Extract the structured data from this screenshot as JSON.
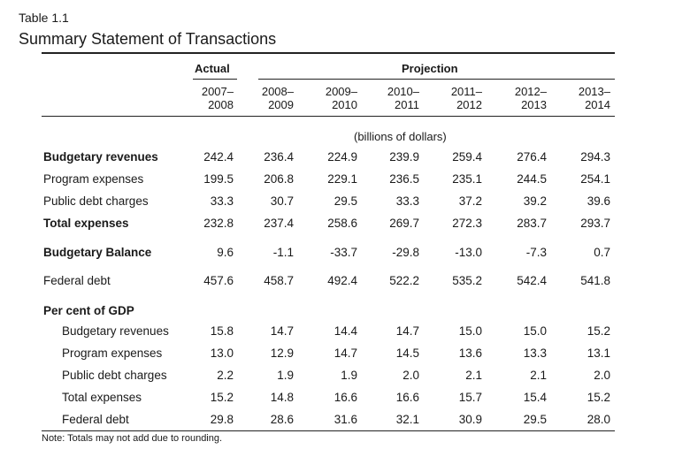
{
  "table": {
    "label": "Table 1.1",
    "title": "Summary Statement of Transactions",
    "group_actual": "Actual",
    "group_projection": "Projection",
    "years": [
      {
        "top": "2007–",
        "bottom": "2008"
      },
      {
        "top": "2008–",
        "bottom": "2009"
      },
      {
        "top": "2009–",
        "bottom": "2010"
      },
      {
        "top": "2010–",
        "bottom": "2011"
      },
      {
        "top": "2011–",
        "bottom": "2012"
      },
      {
        "top": "2012–",
        "bottom": "2013"
      },
      {
        "top": "2013–",
        "bottom": "2014"
      }
    ],
    "units": "(billions of dollars)",
    "rows": [
      {
        "label": "Budgetary revenues",
        "bold": true,
        "indent": false,
        "values": [
          "242.4",
          "236.4",
          "224.9",
          "239.9",
          "259.4",
          "276.4",
          "294.3"
        ]
      },
      {
        "label": "Program expenses",
        "bold": false,
        "indent": false,
        "values": [
          "199.5",
          "206.8",
          "229.1",
          "236.5",
          "235.1",
          "244.5",
          "254.1"
        ]
      },
      {
        "label": "Public debt charges",
        "bold": false,
        "indent": false,
        "values": [
          "33.3",
          "30.7",
          "29.5",
          "33.3",
          "37.2",
          "39.2",
          "39.6"
        ]
      },
      {
        "label": "Total expenses",
        "bold": true,
        "indent": false,
        "values": [
          "232.8",
          "237.4",
          "258.6",
          "269.7",
          "272.3",
          "283.7",
          "293.7"
        ]
      },
      {
        "label": "Budgetary Balance",
        "bold": true,
        "indent": false,
        "values": [
          "9.6",
          "-1.1",
          "-33.7",
          "-29.8",
          "-13.0",
          "-7.3",
          "0.7"
        ]
      },
      {
        "label": "Federal debt",
        "bold": false,
        "indent": false,
        "values": [
          "457.6",
          "458.7",
          "492.4",
          "522.2",
          "535.2",
          "542.4",
          "541.8"
        ]
      },
      {
        "label": "Per cent of GDP",
        "bold": true,
        "indent": false,
        "values": []
      },
      {
        "label": "Budgetary revenues",
        "bold": false,
        "indent": true,
        "values": [
          "15.8",
          "14.7",
          "14.4",
          "14.7",
          "15.0",
          "15.0",
          "15.2"
        ]
      },
      {
        "label": "Program expenses",
        "bold": false,
        "indent": true,
        "values": [
          "13.0",
          "12.9",
          "14.7",
          "14.5",
          "13.6",
          "13.3",
          "13.1"
        ]
      },
      {
        "label": "Public debt charges",
        "bold": false,
        "indent": true,
        "values": [
          "2.2",
          "1.9",
          "1.9",
          "2.0",
          "2.1",
          "2.1",
          "2.0"
        ]
      },
      {
        "label": "Total expenses",
        "bold": false,
        "indent": true,
        "values": [
          "15.2",
          "14.8",
          "16.6",
          "16.6",
          "15.7",
          "15.4",
          "15.2"
        ]
      },
      {
        "label": "Federal debt",
        "bold": false,
        "indent": true,
        "values": [
          "29.8",
          "28.6",
          "31.6",
          "32.1",
          "30.9",
          "29.5",
          "28.0"
        ]
      }
    ],
    "note": "Note: Totals may not add due to rounding."
  }
}
